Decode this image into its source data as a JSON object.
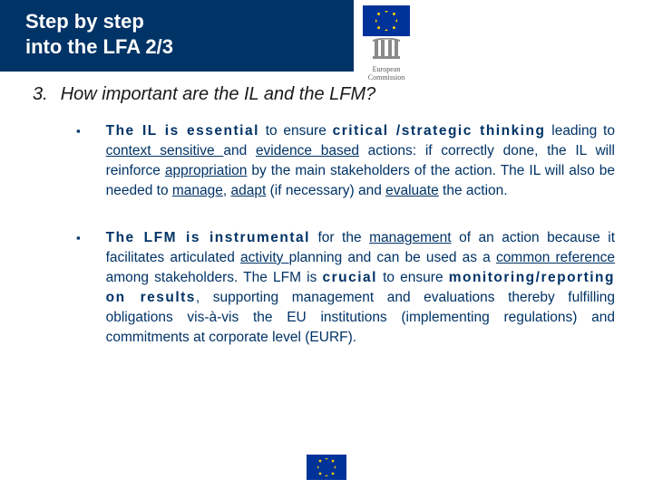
{
  "colors": {
    "header_bg": "#003366",
    "header_text": "#ffffff",
    "body_text": "#003366",
    "question_text": "#1a1a1a",
    "eu_blue": "#003399",
    "eu_gold": "#ffcc00",
    "page_bg": "#ffffff"
  },
  "typography": {
    "header_fontsize": 22,
    "question_fontsize": 20,
    "body_fontsize": 15.5,
    "logo_fontsize": 8
  },
  "header": {
    "title_line1": "Step by step",
    "title_line2": "into the LFA 2/3"
  },
  "logo": {
    "line1": "European",
    "line2": "Commission"
  },
  "question": {
    "number": "3.",
    "text": "How important are the IL and the LFM?"
  },
  "bullets": [
    {
      "marker": "▪",
      "runs": [
        {
          "t": "The IL is essential",
          "b": true,
          "sp": true
        },
        {
          "t": " to ensure "
        },
        {
          "t": "critical /strategic thinking",
          "b": true,
          "sp": true
        },
        {
          "t": " leading to "
        },
        {
          "t": "context sensitive ",
          "u": true
        },
        {
          "t": "and "
        },
        {
          "t": "evidence based",
          "u": true
        },
        {
          "t": " actions: if correctly done, the IL will reinforce "
        },
        {
          "t": "appropriation",
          "u": true
        },
        {
          "t": " by the main stakeholders of the action. The IL will also be needed to "
        },
        {
          "t": "manage",
          "u": true
        },
        {
          "t": ", "
        },
        {
          "t": "adapt",
          "u": true
        },
        {
          "t": " (if necessary) and "
        },
        {
          "t": "evaluate",
          "u": true
        },
        {
          "t": " the action."
        }
      ]
    },
    {
      "marker": "▪",
      "runs": [
        {
          "t": "The LFM is instrumental",
          "b": true,
          "sp": true
        },
        {
          "t": " for the "
        },
        {
          "t": "management",
          "u": true
        },
        {
          "t": " of an action because it facilitates articulated "
        },
        {
          "t": "activity ",
          "u": true
        },
        {
          "t": "planning and can be used as a "
        },
        {
          "t": "common reference",
          "u": true
        },
        {
          "t": " among stakeholders. The LFM is "
        },
        {
          "t": "crucial",
          "b": true,
          "sp": true
        },
        {
          "t": " to ensure "
        },
        {
          "t": "monitoring/reporting on results",
          "b": true,
          "sp": true
        },
        {
          "t": ", supporting management and evaluations thereby fulfilling obligations vis-à-vis the EU institutions (implementing regulations) and commitments at corporate level (EURF)."
        }
      ]
    }
  ]
}
